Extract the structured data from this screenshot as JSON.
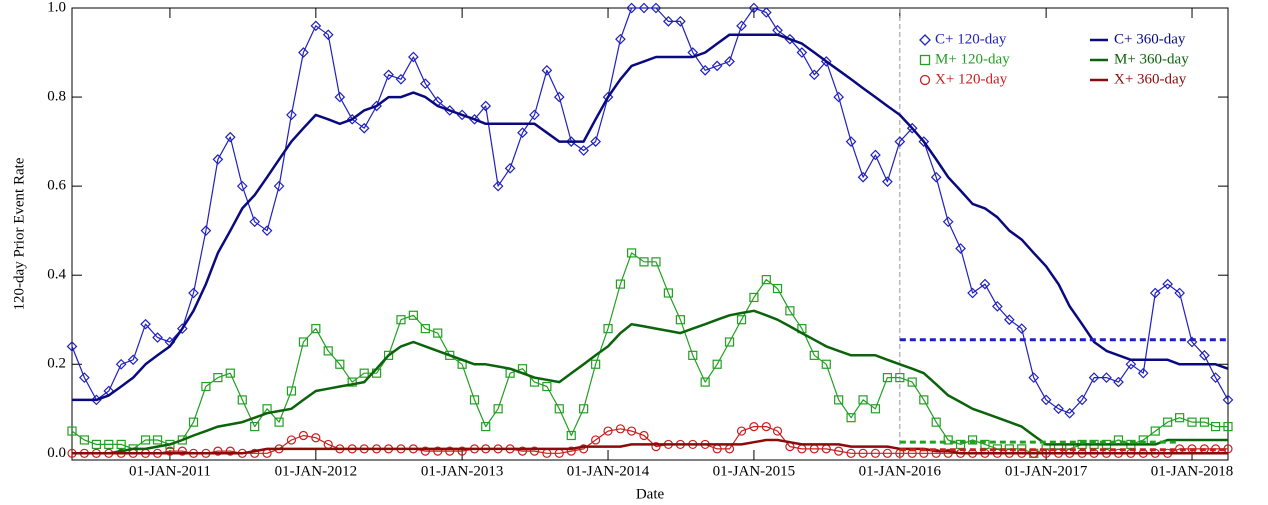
{
  "chart_data": {
    "type": "line",
    "x_label": "Date",
    "y_label": "120-day Prior Event Rate",
    "x": [
      "2010-05-01",
      "2010-06-01",
      "2010-07-01",
      "2010-08-01",
      "2010-09-01",
      "2010-10-01",
      "2010-11-01",
      "2010-12-01",
      "2011-01-01",
      "2011-02-01",
      "2011-03-01",
      "2011-04-01",
      "2011-05-01",
      "2011-06-01",
      "2011-07-01",
      "2011-08-01",
      "2011-09-01",
      "2011-10-01",
      "2011-11-01",
      "2011-12-01",
      "2012-01-01",
      "2012-02-01",
      "2012-03-01",
      "2012-04-01",
      "2012-05-01",
      "2012-06-01",
      "2012-07-01",
      "2012-08-01",
      "2012-09-01",
      "2012-10-01",
      "2012-11-01",
      "2012-12-01",
      "2013-01-01",
      "2013-02-01",
      "2013-03-01",
      "2013-04-01",
      "2013-05-01",
      "2013-06-01",
      "2013-07-01",
      "2013-08-01",
      "2013-09-01",
      "2013-10-01",
      "2013-11-01",
      "2013-12-01",
      "2014-01-01",
      "2014-02-01",
      "2014-03-01",
      "2014-04-01",
      "2014-05-01",
      "2014-06-01",
      "2014-07-01",
      "2014-08-01",
      "2014-09-01",
      "2014-10-01",
      "2014-11-01",
      "2014-12-01",
      "2015-01-01",
      "2015-02-01",
      "2015-03-01",
      "2015-04-01",
      "2015-05-01",
      "2015-06-01",
      "2015-07-01",
      "2015-08-01",
      "2015-09-01",
      "2015-10-01",
      "2015-11-01",
      "2015-12-01",
      "2016-01-01",
      "2016-02-01",
      "2016-03-01",
      "2016-04-01",
      "2016-05-01",
      "2016-06-01",
      "2016-07-01",
      "2016-08-01",
      "2016-09-01",
      "2016-10-01",
      "2016-11-01",
      "2016-12-01",
      "2017-01-01",
      "2017-02-01",
      "2017-03-01",
      "2017-04-01",
      "2017-05-01",
      "2017-06-01",
      "2017-07-01",
      "2017-08-01",
      "2017-09-01",
      "2017-10-01",
      "2017-11-01",
      "2017-12-01",
      "2018-01-01",
      "2018-02-01",
      "2018-03-01",
      "2018-04-01"
    ],
    "xlim": [
      "2010-05-01",
      "2018-04-01"
    ],
    "xticks": [
      {
        "value": "2011-01-01",
        "label": "01-JAN-2011"
      },
      {
        "value": "2012-01-01",
        "label": "01-JAN-2012"
      },
      {
        "value": "2013-01-01",
        "label": "01-JAN-2013"
      },
      {
        "value": "2014-01-01",
        "label": "01-JAN-2014"
      },
      {
        "value": "2015-01-01",
        "label": "01-JAN-2015"
      },
      {
        "value": "2016-01-01",
        "label": "01-JAN-2016"
      },
      {
        "value": "2017-01-01",
        "label": "01-JAN-2017"
      },
      {
        "value": "2018-01-01",
        "label": "01-JAN-2018"
      }
    ],
    "ylim": [
      -0.015,
      1.0
    ],
    "yticks": [
      {
        "value": 0,
        "label": "0.0"
      },
      0.2,
      0.4,
      0.6,
      0.8,
      {
        "value": 1,
        "label": "1.0"
      }
    ],
    "legend": "upper right",
    "vline": {
      "x": "2016-01-01",
      "color": "#999999"
    },
    "hlines": [
      {
        "value": 0.255,
        "color": "#2020c0",
        "from": "2016-01-01",
        "to": "2018-04-01"
      },
      {
        "value": 0.025,
        "color": "#22a022",
        "from": "2016-01-01",
        "to": "2017-12-01"
      },
      {
        "value": 0.008,
        "color": "#c81e1e",
        "from": "2016-01-01",
        "to": "2018-04-01"
      }
    ],
    "series": [
      {
        "name": "C+ 120-day",
        "color": "#2020c0",
        "marker": "diamond",
        "values": [
          0.24,
          0.17,
          0.12,
          0.14,
          0.2,
          0.21,
          0.29,
          0.26,
          0.25,
          0.28,
          0.36,
          0.5,
          0.66,
          0.71,
          0.6,
          0.52,
          0.5,
          0.6,
          0.76,
          0.9,
          0.96,
          0.94,
          0.8,
          0.75,
          0.73,
          0.78,
          0.85,
          0.84,
          0.89,
          0.83,
          0.79,
          0.77,
          0.76,
          0.75,
          0.78,
          0.6,
          0.64,
          0.72,
          0.76,
          0.86,
          0.8,
          0.7,
          0.68,
          0.7,
          0.8,
          0.93,
          1.0,
          1.0,
          1.0,
          0.97,
          0.97,
          0.9,
          0.86,
          0.87,
          0.88,
          0.96,
          1.0,
          0.99,
          0.95,
          0.93,
          0.9,
          0.85,
          0.88,
          0.8,
          0.7,
          0.62,
          0.67,
          0.61,
          0.7,
          0.73,
          0.7,
          0.62,
          0.52,
          0.46,
          0.36,
          0.38,
          0.33,
          0.3,
          0.28,
          0.17,
          0.12,
          0.1,
          0.09,
          0.12,
          0.17,
          0.17,
          0.16,
          0.2,
          0.18,
          0.36,
          0.38,
          0.36,
          0.25,
          0.22,
          0.17,
          0.12
        ]
      },
      {
        "name": "M+ 120-day",
        "color": "#22a022",
        "marker": "square",
        "values": [
          0.05,
          0.03,
          0.02,
          0.02,
          0.02,
          0.01,
          0.03,
          0.03,
          0.02,
          0.03,
          0.07,
          0.15,
          0.17,
          0.18,
          0.12,
          0.06,
          0.1,
          0.07,
          0.14,
          0.25,
          0.28,
          0.23,
          0.2,
          0.16,
          0.18,
          0.18,
          0.22,
          0.3,
          0.31,
          0.28,
          0.27,
          0.22,
          0.2,
          0.12,
          0.06,
          0.1,
          0.18,
          0.19,
          0.16,
          0.15,
          0.1,
          0.04,
          0.1,
          0.2,
          0.28,
          0.38,
          0.45,
          0.43,
          0.43,
          0.36,
          0.3,
          0.22,
          0.16,
          0.2,
          0.25,
          0.3,
          0.35,
          0.39,
          0.37,
          0.32,
          0.28,
          0.22,
          0.2,
          0.12,
          0.08,
          0.12,
          0.1,
          0.17,
          0.17,
          0.16,
          0.12,
          0.07,
          0.03,
          0.02,
          0.03,
          0.02,
          0.01,
          0.01,
          0.01,
          0.0,
          0.01,
          0.01,
          0.01,
          0.02,
          0.02,
          0.02,
          0.03,
          0.02,
          0.03,
          0.05,
          0.07,
          0.08,
          0.07,
          0.07,
          0.06,
          0.06
        ]
      },
      {
        "name": "X+ 120-day",
        "color": "#c81e1e",
        "marker": "circle",
        "values": [
          0,
          0,
          0,
          0,
          0,
          0,
          0,
          0,
          0.005,
          0.005,
          0,
          0,
          0.005,
          0.005,
          0,
          0,
          0,
          0.01,
          0.03,
          0.04,
          0.035,
          0.02,
          0.01,
          0.01,
          0.01,
          0.01,
          0.01,
          0.01,
          0.01,
          0.005,
          0.005,
          0.005,
          0.005,
          0.01,
          0.01,
          0.01,
          0.01,
          0.005,
          0.005,
          0,
          0,
          0.005,
          0.01,
          0.03,
          0.05,
          0.055,
          0.05,
          0.04,
          0.015,
          0.02,
          0.02,
          0.02,
          0.02,
          0.01,
          0.01,
          0.05,
          0.06,
          0.06,
          0.05,
          0.015,
          0.01,
          0.01,
          0.01,
          0.005,
          0,
          0,
          0,
          0,
          0,
          0,
          0,
          0,
          0,
          0,
          0,
          0,
          0,
          0,
          0,
          0,
          0,
          0,
          0,
          0,
          0,
          0,
          0,
          0,
          0,
          0,
          0,
          0.01,
          0.01,
          0.01,
          0.01,
          0.01
        ]
      },
      {
        "name": "C+ 360-day",
        "color": "#0a0a80",
        "values": [
          0.12,
          0.12,
          0.12,
          0.13,
          0.15,
          0.17,
          0.2,
          0.22,
          0.24,
          0.28,
          0.32,
          0.38,
          0.45,
          0.5,
          0.55,
          0.58,
          0.62,
          0.66,
          0.7,
          0.73,
          0.76,
          0.75,
          0.74,
          0.75,
          0.77,
          0.78,
          0.8,
          0.8,
          0.81,
          0.8,
          0.78,
          0.77,
          0.76,
          0.75,
          0.74,
          0.74,
          0.74,
          0.74,
          0.74,
          0.72,
          0.7,
          0.7,
          0.7,
          0.75,
          0.8,
          0.84,
          0.87,
          0.88,
          0.89,
          0.89,
          0.89,
          0.89,
          0.9,
          0.92,
          0.94,
          0.94,
          0.94,
          0.94,
          0.94,
          0.93,
          0.92,
          0.9,
          0.88,
          0.86,
          0.84,
          0.82,
          0.8,
          0.78,
          0.76,
          0.73,
          0.7,
          0.66,
          0.62,
          0.59,
          0.56,
          0.55,
          0.53,
          0.5,
          0.48,
          0.45,
          0.42,
          0.38,
          0.33,
          0.29,
          0.25,
          0.23,
          0.22,
          0.21,
          0.21,
          0.21,
          0.21,
          0.2,
          0.2,
          0.2,
          0.2,
          0.19
        ]
      },
      {
        "name": "M+ 360-day",
        "color": "#0b640b",
        "values": [
          0,
          0,
          0,
          0,
          0.005,
          0.01,
          0.01,
          0.015,
          0.02,
          0.03,
          0.04,
          0.05,
          0.06,
          0.065,
          0.07,
          0.08,
          0.09,
          0.095,
          0.1,
          0.12,
          0.14,
          0.145,
          0.15,
          0.155,
          0.16,
          0.19,
          0.22,
          0.24,
          0.25,
          0.24,
          0.23,
          0.22,
          0.21,
          0.2,
          0.2,
          0.195,
          0.19,
          0.18,
          0.17,
          0.165,
          0.16,
          0.18,
          0.2,
          0.22,
          0.24,
          0.27,
          0.29,
          0.285,
          0.28,
          0.275,
          0.27,
          0.28,
          0.29,
          0.3,
          0.31,
          0.315,
          0.32,
          0.31,
          0.3,
          0.285,
          0.27,
          0.255,
          0.24,
          0.23,
          0.22,
          0.22,
          0.22,
          0.21,
          0.2,
          0.19,
          0.18,
          0.155,
          0.13,
          0.115,
          0.1,
          0.09,
          0.08,
          0.07,
          0.06,
          0.04,
          0.02,
          0.02,
          0.02,
          0.02,
          0.02,
          0.02,
          0.02,
          0.02,
          0.02,
          0.02,
          0.03,
          0.03,
          0.03,
          0.03,
          0.03,
          0.03
        ]
      },
      {
        "name": "X+ 360-day",
        "color": "#8b0a0a",
        "values": [
          0,
          0,
          0,
          0,
          0,
          0,
          0,
          0,
          0,
          0,
          0,
          0,
          0,
          0,
          0,
          0.005,
          0.01,
          0.01,
          0.01,
          0.01,
          0.01,
          0.01,
          0.01,
          0.01,
          0.01,
          0.01,
          0.01,
          0.01,
          0.01,
          0.01,
          0.01,
          0.01,
          0.01,
          0.01,
          0.01,
          0.01,
          0.01,
          0.01,
          0.01,
          0.01,
          0.01,
          0.01,
          0.015,
          0.015,
          0.015,
          0.015,
          0.02,
          0.02,
          0.02,
          0.02,
          0.02,
          0.02,
          0.02,
          0.02,
          0.02,
          0.02,
          0.025,
          0.03,
          0.03,
          0.025,
          0.02,
          0.02,
          0.02,
          0.02,
          0.015,
          0.015,
          0.015,
          0.015,
          0.01,
          0.01,
          0.01,
          0.005,
          0.005,
          0,
          0,
          0,
          0,
          0,
          0,
          0,
          0,
          0,
          0,
          0,
          0,
          0,
          0,
          0,
          0,
          0,
          0,
          0,
          0,
          0,
          0,
          0
        ]
      }
    ]
  }
}
